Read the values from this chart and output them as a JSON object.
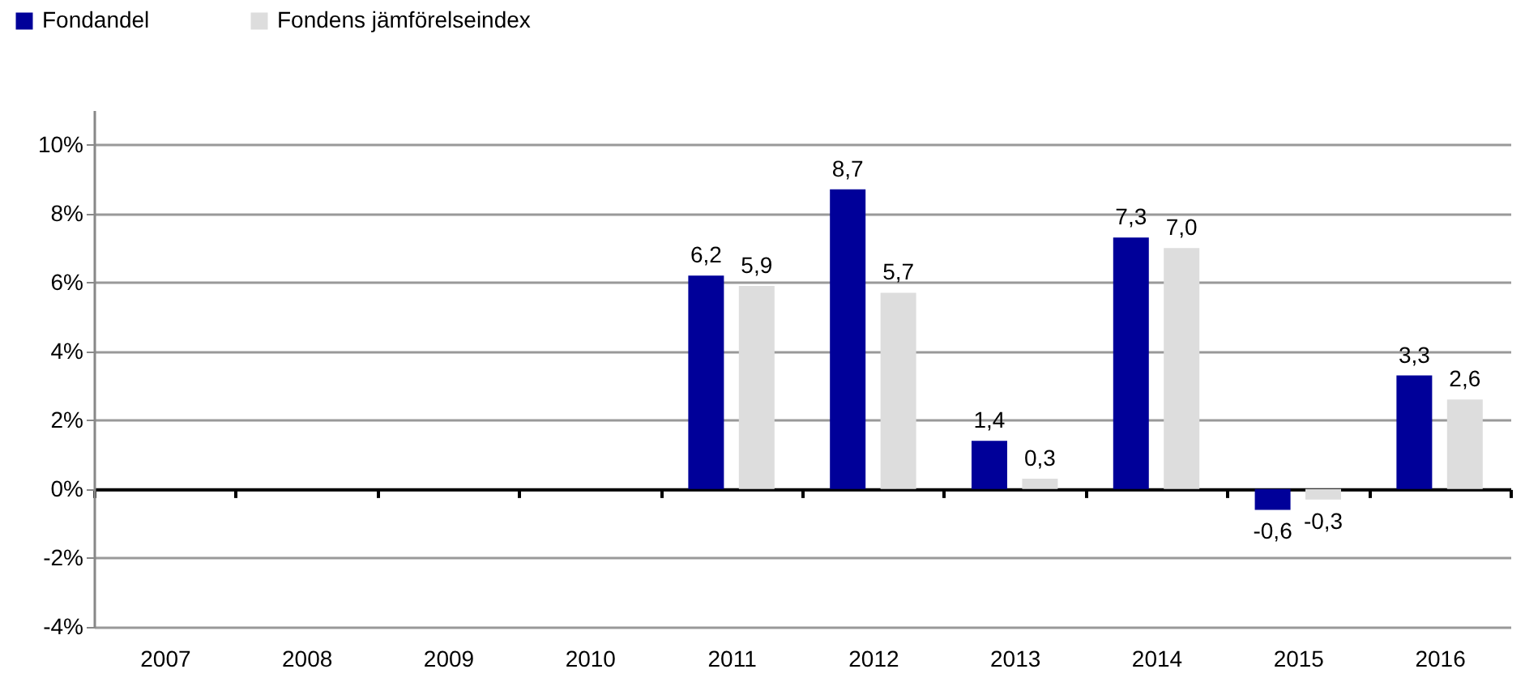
{
  "chart_data": {
    "type": "bar",
    "categories": [
      "2007",
      "2008",
      "2009",
      "2010",
      "2011",
      "2012",
      "2013",
      "2014",
      "2015",
      "2016"
    ],
    "series": [
      {
        "name": "Fondandel",
        "color": "#000099",
        "values": [
          null,
          null,
          null,
          null,
          6.2,
          8.7,
          1.4,
          7.3,
          -0.6,
          3.3
        ],
        "value_labels": [
          null,
          null,
          null,
          null,
          "6,2",
          "8,7",
          "1,4",
          "7,3",
          "-0,6",
          "3,3"
        ]
      },
      {
        "name": "Fondens jämförelseindex",
        "color": "#dddddd",
        "values": [
          null,
          null,
          null,
          null,
          5.9,
          5.7,
          0.3,
          7.0,
          -0.3,
          2.6
        ],
        "value_labels": [
          null,
          null,
          null,
          null,
          "5,9",
          "5,7",
          "0,3",
          "7,0",
          "-0,3",
          "2,6"
        ]
      }
    ],
    "ylim": [
      -4,
      11
    ],
    "yticks": [
      {
        "value": -4,
        "label": "-4%"
      },
      {
        "value": -2,
        "label": "-2%"
      },
      {
        "value": 0,
        "label": "0%"
      },
      {
        "value": 2,
        "label": "2%"
      },
      {
        "value": 4,
        "label": "4%"
      },
      {
        "value": 6,
        "label": "6%"
      },
      {
        "value": 8,
        "label": "8%"
      },
      {
        "value": 10,
        "label": "10%"
      }
    ],
    "grid": "y",
    "legend": "top left"
  }
}
